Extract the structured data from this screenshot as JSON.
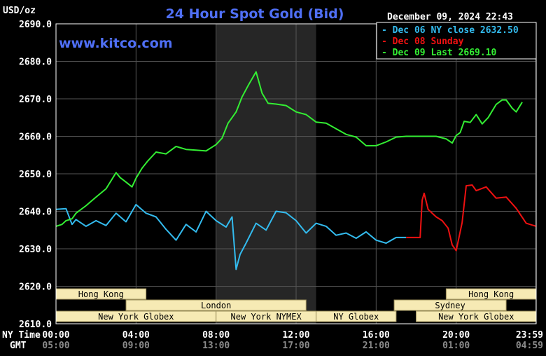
{
  "chart_data": {
    "type": "line",
    "title": "24 Hour Spot Gold (Bid)",
    "ylabel": "USD/oz",
    "source": "www.kitco.com",
    "timestamp": "December 09, 2024 22:43",
    "ylim": [
      2610,
      2690
    ],
    "xlim": [
      0,
      24
    ],
    "y_ticks": [
      {
        "value": 2690,
        "label": "2690.0"
      },
      {
        "value": 2680,
        "label": "2680.0"
      },
      {
        "value": 2670,
        "label": "2670.0"
      },
      {
        "value": 2660,
        "label": "2660.0"
      },
      {
        "value": 2650,
        "label": "2650.0"
      },
      {
        "value": 2640,
        "label": "2640.0"
      },
      {
        "value": 2630,
        "label": "2630.0"
      },
      {
        "value": 2620,
        "label": "2620.0"
      },
      {
        "value": 2610,
        "label": "2610.0"
      }
    ],
    "x_ticks": [
      {
        "value": 0,
        "ny": "00:00",
        "gmt": "05:00"
      },
      {
        "value": 4,
        "ny": "04:00",
        "gmt": "09:00"
      },
      {
        "value": 8,
        "ny": "08:00",
        "gmt": "13:00"
      },
      {
        "value": 12,
        "ny": "12:00",
        "gmt": "17:00"
      },
      {
        "value": 16,
        "ny": "16:00",
        "gmt": "21:00"
      },
      {
        "value": 20,
        "ny": "20:00",
        "gmt": "01:00"
      },
      {
        "value": 23.98,
        "ny": "23:59",
        "gmt": "04:59"
      }
    ],
    "x_row_labels": {
      "ny": "NY Time",
      "gmt": "GMT"
    },
    "highlight_band": [
      8,
      13
    ],
    "sessions": [
      {
        "label": "Hong Kong",
        "start": 0,
        "end": 4.5,
        "row": 0
      },
      {
        "label": "Hong Kong",
        "start": 19.5,
        "end": 24,
        "row": 0
      },
      {
        "label": "London",
        "start": 3.5,
        "end": 12.5,
        "row": 1
      },
      {
        "label": "Sydney",
        "start": 16.9,
        "end": 22.5,
        "row": 1
      },
      {
        "label": "New York Globex",
        "start": 0,
        "end": 8,
        "row": 2
      },
      {
        "label": "New York NYMEX",
        "start": 8,
        "end": 13,
        "row": 2
      },
      {
        "label": "NY Globex",
        "start": 13,
        "end": 17,
        "row": 2
      },
      {
        "label": "New York Globex",
        "start": 18,
        "end": 24,
        "row": 2
      }
    ],
    "legend": [
      {
        "label": "Dec 06 NY close 2632.50",
        "color": "#33bbee"
      },
      {
        "label": "Dec 08 Sunday",
        "color": "#ee1111"
      },
      {
        "label": "Dec 09 Last 2669.10",
        "color": "#33ee33"
      }
    ],
    "series": [
      {
        "name": "Dec 06",
        "color": "#33bbee",
        "x": [
          0,
          0.5,
          0.8,
          1,
          1.5,
          2,
          2.5,
          3,
          3.5,
          4,
          4.5,
          5,
          5.5,
          6,
          6.5,
          7,
          7.5,
          8,
          8.5,
          8.8,
          9,
          9.2,
          9.5,
          10,
          10.5,
          11,
          11.5,
          12,
          12.5,
          13,
          13.5,
          14,
          14.5,
          15,
          15.5,
          16,
          16.5,
          17,
          17.5
        ],
        "y": [
          2640.5,
          2640.7,
          2636.5,
          2637.8,
          2636,
          2637.5,
          2636.2,
          2639.5,
          2637.2,
          2641.8,
          2639.5,
          2638.5,
          2635.2,
          2632.3,
          2636.5,
          2634.5,
          2640,
          2637.5,
          2635.8,
          2638.5,
          2624.5,
          2628.5,
          2631.5,
          2636.8,
          2635,
          2640,
          2639.6,
          2637.5,
          2634.2,
          2636.8,
          2636,
          2633.6,
          2634.2,
          2632.8,
          2634.5,
          2632.3,
          2631.5,
          2633,
          2633
        ]
      },
      {
        "name": "Dec 08",
        "color": "#ee1111",
        "x": [
          17.5,
          18.2,
          18.3,
          18.4,
          18.6,
          19,
          19.3,
          19.6,
          19.8,
          20,
          20.3,
          20.5,
          20.8,
          21,
          21.5,
          22,
          22.5,
          23,
          23.5,
          24
        ],
        "y": [
          2633,
          2633,
          2643,
          2644.8,
          2640.5,
          2638.5,
          2637.5,
          2635.5,
          2631,
          2629.5,
          2637,
          2646.8,
          2647,
          2645.5,
          2646.5,
          2643.5,
          2643.8,
          2640.8,
          2636.8,
          2636
        ]
      },
      {
        "name": "Dec 09",
        "color": "#33ee33",
        "x": [
          0,
          0.3,
          0.5,
          0.8,
          1,
          1.5,
          2,
          2.5,
          3,
          3.2,
          3.5,
          3.8,
          4,
          4.3,
          4.6,
          5,
          5.5,
          6,
          6.5,
          7,
          7.5,
          8,
          8.3,
          8.6,
          9,
          9.3,
          9.6,
          10,
          10.3,
          10.6,
          11,
          11.5,
          12,
          12.5,
          13,
          13.5,
          14,
          14.5,
          15,
          15.5,
          16,
          16.5,
          17,
          17.5,
          18,
          18.5,
          19,
          19.5,
          19.8,
          20,
          20.2,
          20.4,
          20.7,
          21,
          21.3,
          21.6,
          22,
          22.3,
          22.5,
          22.8,
          23,
          23.3
        ],
        "y": [
          2636,
          2636.5,
          2637.5,
          2638,
          2639.5,
          2641.5,
          2643.8,
          2646,
          2650.3,
          2649,
          2647.8,
          2646.5,
          2648.8,
          2651.5,
          2653.5,
          2655.8,
          2655.3,
          2657.3,
          2656.5,
          2656.3,
          2656.1,
          2657.8,
          2659.5,
          2663.5,
          2666.5,
          2670.5,
          2673.5,
          2677.2,
          2671.5,
          2668.8,
          2668.6,
          2668.2,
          2666.5,
          2665.8,
          2663.8,
          2663.5,
          2662,
          2660.5,
          2659.8,
          2657.5,
          2657.5,
          2658.5,
          2659.8,
          2660,
          2660,
          2660,
          2660,
          2659.3,
          2658.2,
          2660.2,
          2661,
          2664,
          2663.7,
          2665.8,
          2663.3,
          2665,
          2668.5,
          2669.7,
          2669.7,
          2667.5,
          2666.5,
          2669.1
        ]
      }
    ]
  }
}
